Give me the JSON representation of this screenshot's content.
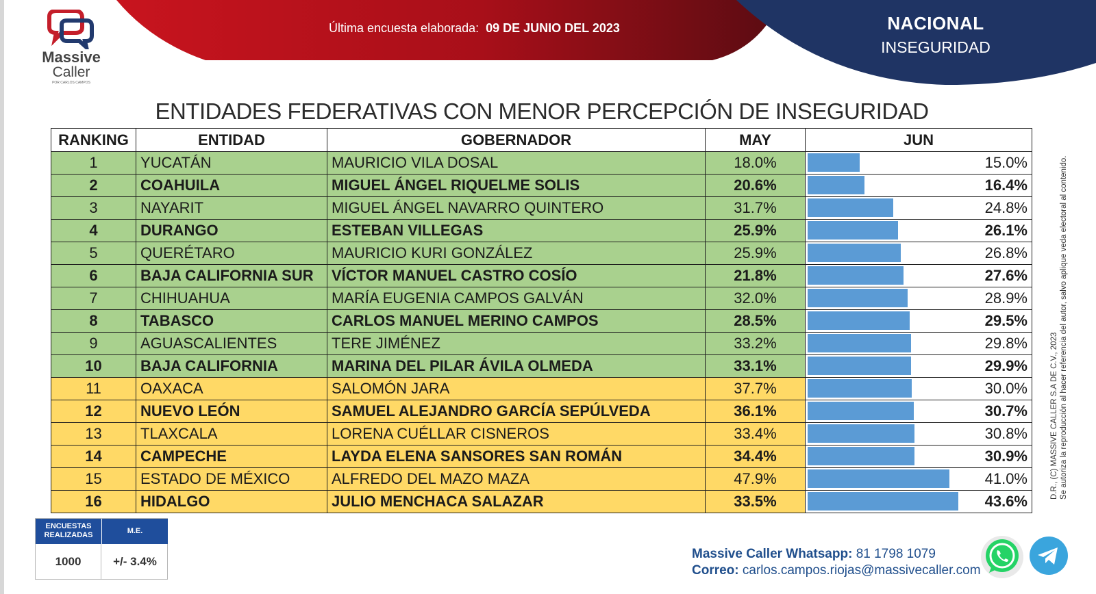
{
  "header": {
    "survey_label": "Última encuesta elaborada:",
    "survey_date": "09 DE JUNIO DEL 2023",
    "region": "NACIONAL",
    "topic": "INSEGURIDAD",
    "colors": {
      "red": "#b5121b",
      "navy": "#1f3464"
    }
  },
  "logo": {
    "line1": "Massive",
    "line2": "Caller",
    "tagline": "POR CARLOS CAMPOS",
    "icon": "chat-bubbles-logo"
  },
  "title": "ENTIDADES FEDERATIVAS CON MENOR PERCEPCIÓN DE INSEGURIDAD",
  "table": {
    "headers": {
      "ranking": "RANKING",
      "entidad": "ENTIDAD",
      "gobernador": "GOBERNADOR",
      "may": "MAY",
      "jun": "JUN"
    },
    "colors": {
      "green": "#a9d18e",
      "yellow": "#ffd966",
      "bar": "#5b9bd5"
    },
    "rows": [
      {
        "rank": "1",
        "entidad": "YUCATÁN",
        "gobernador": "MAURICIO VILA DOSAL",
        "may": "18.0%",
        "jun": "15.0%",
        "jun_value": 15.0,
        "color": "green",
        "bold": false
      },
      {
        "rank": "2",
        "entidad": "COAHUILA",
        "gobernador": "MIGUEL ÁNGEL RIQUELME SOLIS",
        "may": "20.6%",
        "jun": "16.4%",
        "jun_value": 16.4,
        "color": "green",
        "bold": true
      },
      {
        "rank": "3",
        "entidad": "NAYARIT",
        "gobernador": "MIGUEL ÁNGEL NAVARRO QUINTERO",
        "may": "31.7%",
        "jun": "24.8%",
        "jun_value": 24.8,
        "color": "green",
        "bold": false
      },
      {
        "rank": "4",
        "entidad": "DURANGO",
        "gobernador": "ESTEBAN VILLEGAS",
        "may": "25.9%",
        "jun": "26.1%",
        "jun_value": 26.1,
        "color": "green",
        "bold": true
      },
      {
        "rank": "5",
        "entidad": "QUERÉTARO",
        "gobernador": "MAURICIO KURI GONZÁLEZ",
        "may": "25.9%",
        "jun": "26.8%",
        "jun_value": 26.8,
        "color": "green",
        "bold": false
      },
      {
        "rank": "6",
        "entidad": "BAJA CALIFORNIA SUR",
        "gobernador": "VÍCTOR MANUEL CASTRO COSÍO",
        "may": "21.8%",
        "jun": "27.6%",
        "jun_value": 27.6,
        "color": "green",
        "bold": true
      },
      {
        "rank": "7",
        "entidad": "CHIHUAHUA",
        "gobernador": "MARÍA EUGENIA CAMPOS GALVÁN",
        "may": "32.0%",
        "jun": "28.9%",
        "jun_value": 28.9,
        "color": "green",
        "bold": false
      },
      {
        "rank": "8",
        "entidad": "TABASCO",
        "gobernador": "CARLOS MANUEL MERINO CAMPOS",
        "may": "28.5%",
        "jun": "29.5%",
        "jun_value": 29.5,
        "color": "green",
        "bold": true
      },
      {
        "rank": "9",
        "entidad": "AGUASCALIENTES",
        "gobernador": "TERE JIMÉNEZ",
        "may": "33.2%",
        "jun": "29.8%",
        "jun_value": 29.8,
        "color": "green",
        "bold": false
      },
      {
        "rank": "10",
        "entidad": "BAJA CALIFORNIA",
        "gobernador": "MARINA DEL PILAR ÁVILA OLMEDA",
        "may": "33.1%",
        "jun": "29.9%",
        "jun_value": 29.9,
        "color": "green",
        "bold": true
      },
      {
        "rank": "11",
        "entidad": "OAXACA",
        "gobernador": "SALOMÓN JARA",
        "may": "37.7%",
        "jun": "30.0%",
        "jun_value": 30.0,
        "color": "yellow",
        "bold": false
      },
      {
        "rank": "12",
        "entidad": "NUEVO LEÓN",
        "gobernador": "SAMUEL ALEJANDRO GARCÍA SEPÚLVEDA",
        "may": "36.1%",
        "jun": "30.7%",
        "jun_value": 30.7,
        "color": "yellow",
        "bold": true
      },
      {
        "rank": "13",
        "entidad": "TLAXCALA",
        "gobernador": "LORENA CUÉLLAR CISNEROS",
        "may": "33.4%",
        "jun": "30.8%",
        "jun_value": 30.8,
        "color": "yellow",
        "bold": false
      },
      {
        "rank": "14",
        "entidad": "CAMPECHE",
        "gobernador": "LAYDA ELENA SANSORES SAN ROMÁN",
        "may": "34.4%",
        "jun": "30.9%",
        "jun_value": 30.9,
        "color": "yellow",
        "bold": true
      },
      {
        "rank": "15",
        "entidad": "ESTADO DE MÉXICO",
        "gobernador": "ALFREDO DEL MAZO MAZA",
        "may": "47.9%",
        "jun": "41.0%",
        "jun_value": 41.0,
        "color": "yellow",
        "bold": false
      },
      {
        "rank": "16",
        "entidad": "HIDALGO",
        "gobernador": "JULIO MENCHACA SALAZAR",
        "may": "33.5%",
        "jun": "43.6%",
        "jun_value": 43.6,
        "color": "yellow",
        "bold": true
      }
    ]
  },
  "stats": {
    "encuestas_label": "ENCUESTAS REALIZADAS",
    "me_label": "M.E.",
    "encuestas_value": "1000",
    "me_value": "+/- 3.4%"
  },
  "contact": {
    "whatsapp_label": "Massive Caller Whatsapp:",
    "whatsapp_number": "81 1798 1079",
    "email_label": "Correo:",
    "email": "carlos.campos.riojas@massivecaller.com"
  },
  "icons": {
    "whatsapp": "whatsapp-icon",
    "telegram": "telegram-icon"
  },
  "copyright": {
    "line1": "D.R., (C) MASSIVE CALLER S.A DE C.V., 2023",
    "line2": "Se autoriza la reproducción al hacer referencia del autor, salvo aplique veda electoral al contenido."
  }
}
